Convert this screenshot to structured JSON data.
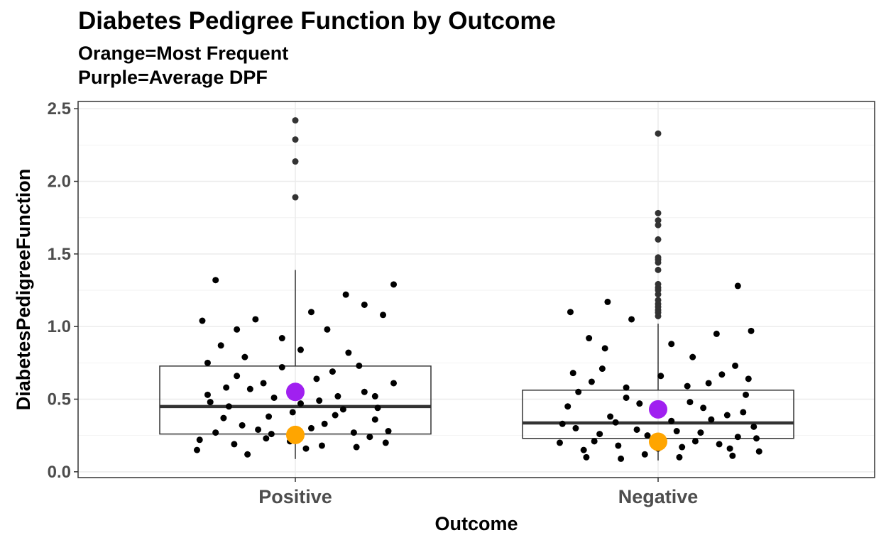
{
  "chart_data": {
    "type": "box+jitter",
    "title": "Diabetes Pedigree Function by Outcome",
    "subtitle_lines": [
      "Orange=Most Frequent",
      "Purple=Average DPF"
    ],
    "xlabel": "Outcome",
    "ylabel": "DiabetesPedigreeFunction",
    "ylim": [
      -0.04,
      2.55
    ],
    "yticks": [
      0.0,
      0.5,
      1.0,
      1.5,
      2.0,
      2.5
    ],
    "ytick_labels": [
      "0.0",
      "0.5",
      "1.0",
      "1.5",
      "2.0",
      "2.5"
    ],
    "categories": [
      "Positive",
      "Negative"
    ],
    "grid": true,
    "colors": {
      "points": "#000000",
      "mode_marker": "#FFA500",
      "mean_marker": "#A020F0",
      "grid": "#ebebeb",
      "box_line": "#333333"
    },
    "boxes": [
      {
        "category": "Positive",
        "whisker_low": 0.088,
        "q1": 0.26,
        "median": 0.449,
        "q3": 0.728,
        "whisker_high": 1.39,
        "outliers": [
          1.89,
          2.137,
          2.288,
          2.42
        ]
      },
      {
        "category": "Negative",
        "whisker_low": 0.078,
        "q1": 0.23,
        "median": 0.336,
        "q3": 0.562,
        "whisker_high": 1.02,
        "outliers": [
          1.072,
          1.096,
          1.114,
          1.136,
          1.156,
          1.182,
          1.222,
          1.251,
          1.268,
          1.292,
          1.39,
          1.441,
          1.461,
          1.476,
          1.6,
          1.699,
          1.731,
          1.781,
          2.329
        ]
      }
    ],
    "most_frequent": {
      "Positive": 0.254,
      "Negative": 0.207
    },
    "average": {
      "Positive": 0.55,
      "Negative": 0.43
    },
    "jitter_points": {
      "Positive": [
        [
          -0.37,
          0.15
        ],
        [
          -0.33,
          0.53
        ],
        [
          -0.3,
          0.27
        ],
        [
          -0.28,
          0.87
        ],
        [
          -0.33,
          0.75
        ],
        [
          -0.35,
          1.04
        ],
        [
          -0.25,
          0.45
        ],
        [
          -0.22,
          0.66
        ],
        [
          -0.2,
          0.32
        ],
        [
          -0.18,
          0.12
        ],
        [
          -0.12,
          0.61
        ],
        [
          -0.1,
          0.38
        ],
        [
          -0.05,
          0.72
        ],
        [
          -0.02,
          0.21
        ],
        [
          0.02,
          0.47
        ],
        [
          0.06,
          0.3
        ],
        [
          0.1,
          0.18
        ],
        [
          0.14,
          0.69
        ],
        [
          0.18,
          0.43
        ],
        [
          0.22,
          0.27
        ],
        [
          0.26,
          0.55
        ],
        [
          0.3,
          0.36
        ],
        [
          0.34,
          0.2
        ],
        [
          0.37,
          0.61
        ],
        [
          -0.3,
          1.32
        ],
        [
          -0.22,
          0.98
        ],
        [
          -0.15,
          1.05
        ],
        [
          -0.05,
          0.92
        ],
        [
          0.06,
          1.1
        ],
        [
          0.12,
          0.98
        ],
        [
          0.19,
          1.22
        ],
        [
          0.26,
          1.15
        ],
        [
          0.33,
          1.08
        ],
        [
          0.37,
          1.29
        ],
        [
          0.2,
          0.82
        ],
        [
          -0.14,
          0.29
        ],
        [
          -0.08,
          0.51
        ],
        [
          0.08,
          0.64
        ],
        [
          0.15,
          0.39
        ],
        [
          0.28,
          0.24
        ],
        [
          -0.36,
          0.22
        ],
        [
          -0.27,
          0.37
        ],
        [
          -0.23,
          0.19
        ],
        [
          -0.17,
          0.57
        ],
        [
          -0.09,
          0.26
        ],
        [
          -0.01,
          0.41
        ],
        [
          0.04,
          0.16
        ],
        [
          0.11,
          0.33
        ],
        [
          0.16,
          0.52
        ],
        [
          0.23,
          0.17
        ],
        [
          0.31,
          0.44
        ],
        [
          0.35,
          0.28
        ],
        [
          -0.32,
          0.48
        ],
        [
          -0.19,
          0.79
        ],
        [
          0.02,
          0.84
        ],
        [
          0.24,
          0.73
        ],
        [
          -0.26,
          0.58
        ],
        [
          -0.11,
          0.23
        ],
        [
          0.09,
          0.49
        ],
        [
          0.3,
          0.52
        ]
      ],
      "Negative": [
        [
          -0.37,
          0.2
        ],
        [
          -0.34,
          0.45
        ],
        [
          -0.31,
          0.3
        ],
        [
          -0.28,
          0.15
        ],
        [
          -0.25,
          0.62
        ],
        [
          -0.22,
          0.26
        ],
        [
          -0.18,
          0.38
        ],
        [
          -0.15,
          0.18
        ],
        [
          -0.12,
          0.51
        ],
        [
          -0.08,
          0.29
        ],
        [
          -0.05,
          0.12
        ],
        [
          -0.02,
          0.42
        ],
        [
          0.02,
          0.22
        ],
        [
          0.05,
          0.35
        ],
        [
          0.09,
          0.17
        ],
        [
          0.12,
          0.48
        ],
        [
          0.16,
          0.27
        ],
        [
          0.19,
          0.61
        ],
        [
          0.23,
          0.19
        ],
        [
          0.26,
          0.39
        ],
        [
          0.3,
          0.24
        ],
        [
          0.33,
          0.53
        ],
        [
          0.36,
          0.31
        ],
        [
          0.38,
          0.14
        ],
        [
          -0.33,
          1.1
        ],
        [
          -0.26,
          0.92
        ],
        [
          -0.2,
          0.85
        ],
        [
          -0.1,
          1.05
        ],
        [
          0.05,
          0.88
        ],
        [
          0.13,
          0.79
        ],
        [
          0.22,
          0.95
        ],
        [
          0.29,
          0.73
        ],
        [
          0.35,
          0.97
        ],
        [
          0.3,
          1.28
        ],
        [
          -0.36,
          0.33
        ],
        [
          -0.3,
          0.55
        ],
        [
          -0.24,
          0.21
        ],
        [
          -0.16,
          0.34
        ],
        [
          -0.07,
          0.47
        ],
        [
          0.0,
          0.16
        ],
        [
          0.07,
          0.28
        ],
        [
          0.14,
          0.21
        ],
        [
          0.2,
          0.36
        ],
        [
          0.27,
          0.16
        ],
        [
          0.32,
          0.41
        ],
        [
          0.37,
          0.23
        ],
        [
          -0.32,
          0.68
        ],
        [
          -0.21,
          0.71
        ],
        [
          -0.12,
          0.58
        ],
        [
          0.01,
          0.66
        ],
        [
          0.11,
          0.59
        ],
        [
          0.24,
          0.67
        ],
        [
          0.34,
          0.64
        ],
        [
          -0.27,
          0.1
        ],
        [
          -0.14,
          0.09
        ],
        [
          0.08,
          0.1
        ],
        [
          0.28,
          0.11
        ],
        [
          -0.04,
          0.25
        ],
        [
          0.17,
          0.44
        ],
        [
          -0.19,
          1.17
        ]
      ]
    }
  }
}
